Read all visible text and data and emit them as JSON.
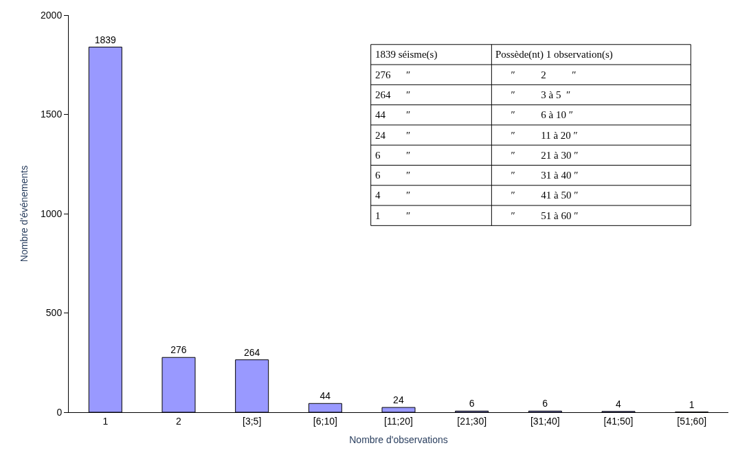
{
  "chart_data": {
    "type": "bar",
    "xlabel": "Nombre d'observations",
    "ylabel": "Nombre d'événements",
    "categories": [
      "1",
      "2",
      "[3;5]",
      "[6;10]",
      "[11;20]",
      "[21;30]",
      "[31;40]",
      "[41;50]",
      "[51;60]"
    ],
    "values": [
      1839,
      276,
      264,
      44,
      24,
      6,
      6,
      4,
      1
    ],
    "color": "#9999ff",
    "data_labels": true,
    "ylim": [
      0,
      2000
    ],
    "yticks": [
      0,
      500,
      1000,
      1500,
      2000
    ],
    "annotations": [
      "1839 séisme(s)",
      "Possède(nt) 1 observation(s)",
      "276      ″",
      "      ″          2          ″",
      "264      ″",
      "      ″          3 à 5  ″",
      "44        ″",
      "      ″          6 à 10 ″",
      "24        ″",
      "      ″          11 à 20 ″",
      "6          ″",
      "      ″          21 à 30 ″",
      "6          ″",
      "      ″          31 à 40 ″",
      "4          ″",
      "      ″          41 à 50 ″",
      "1          ″",
      "      ″          51 à 60 ″"
    ]
  }
}
